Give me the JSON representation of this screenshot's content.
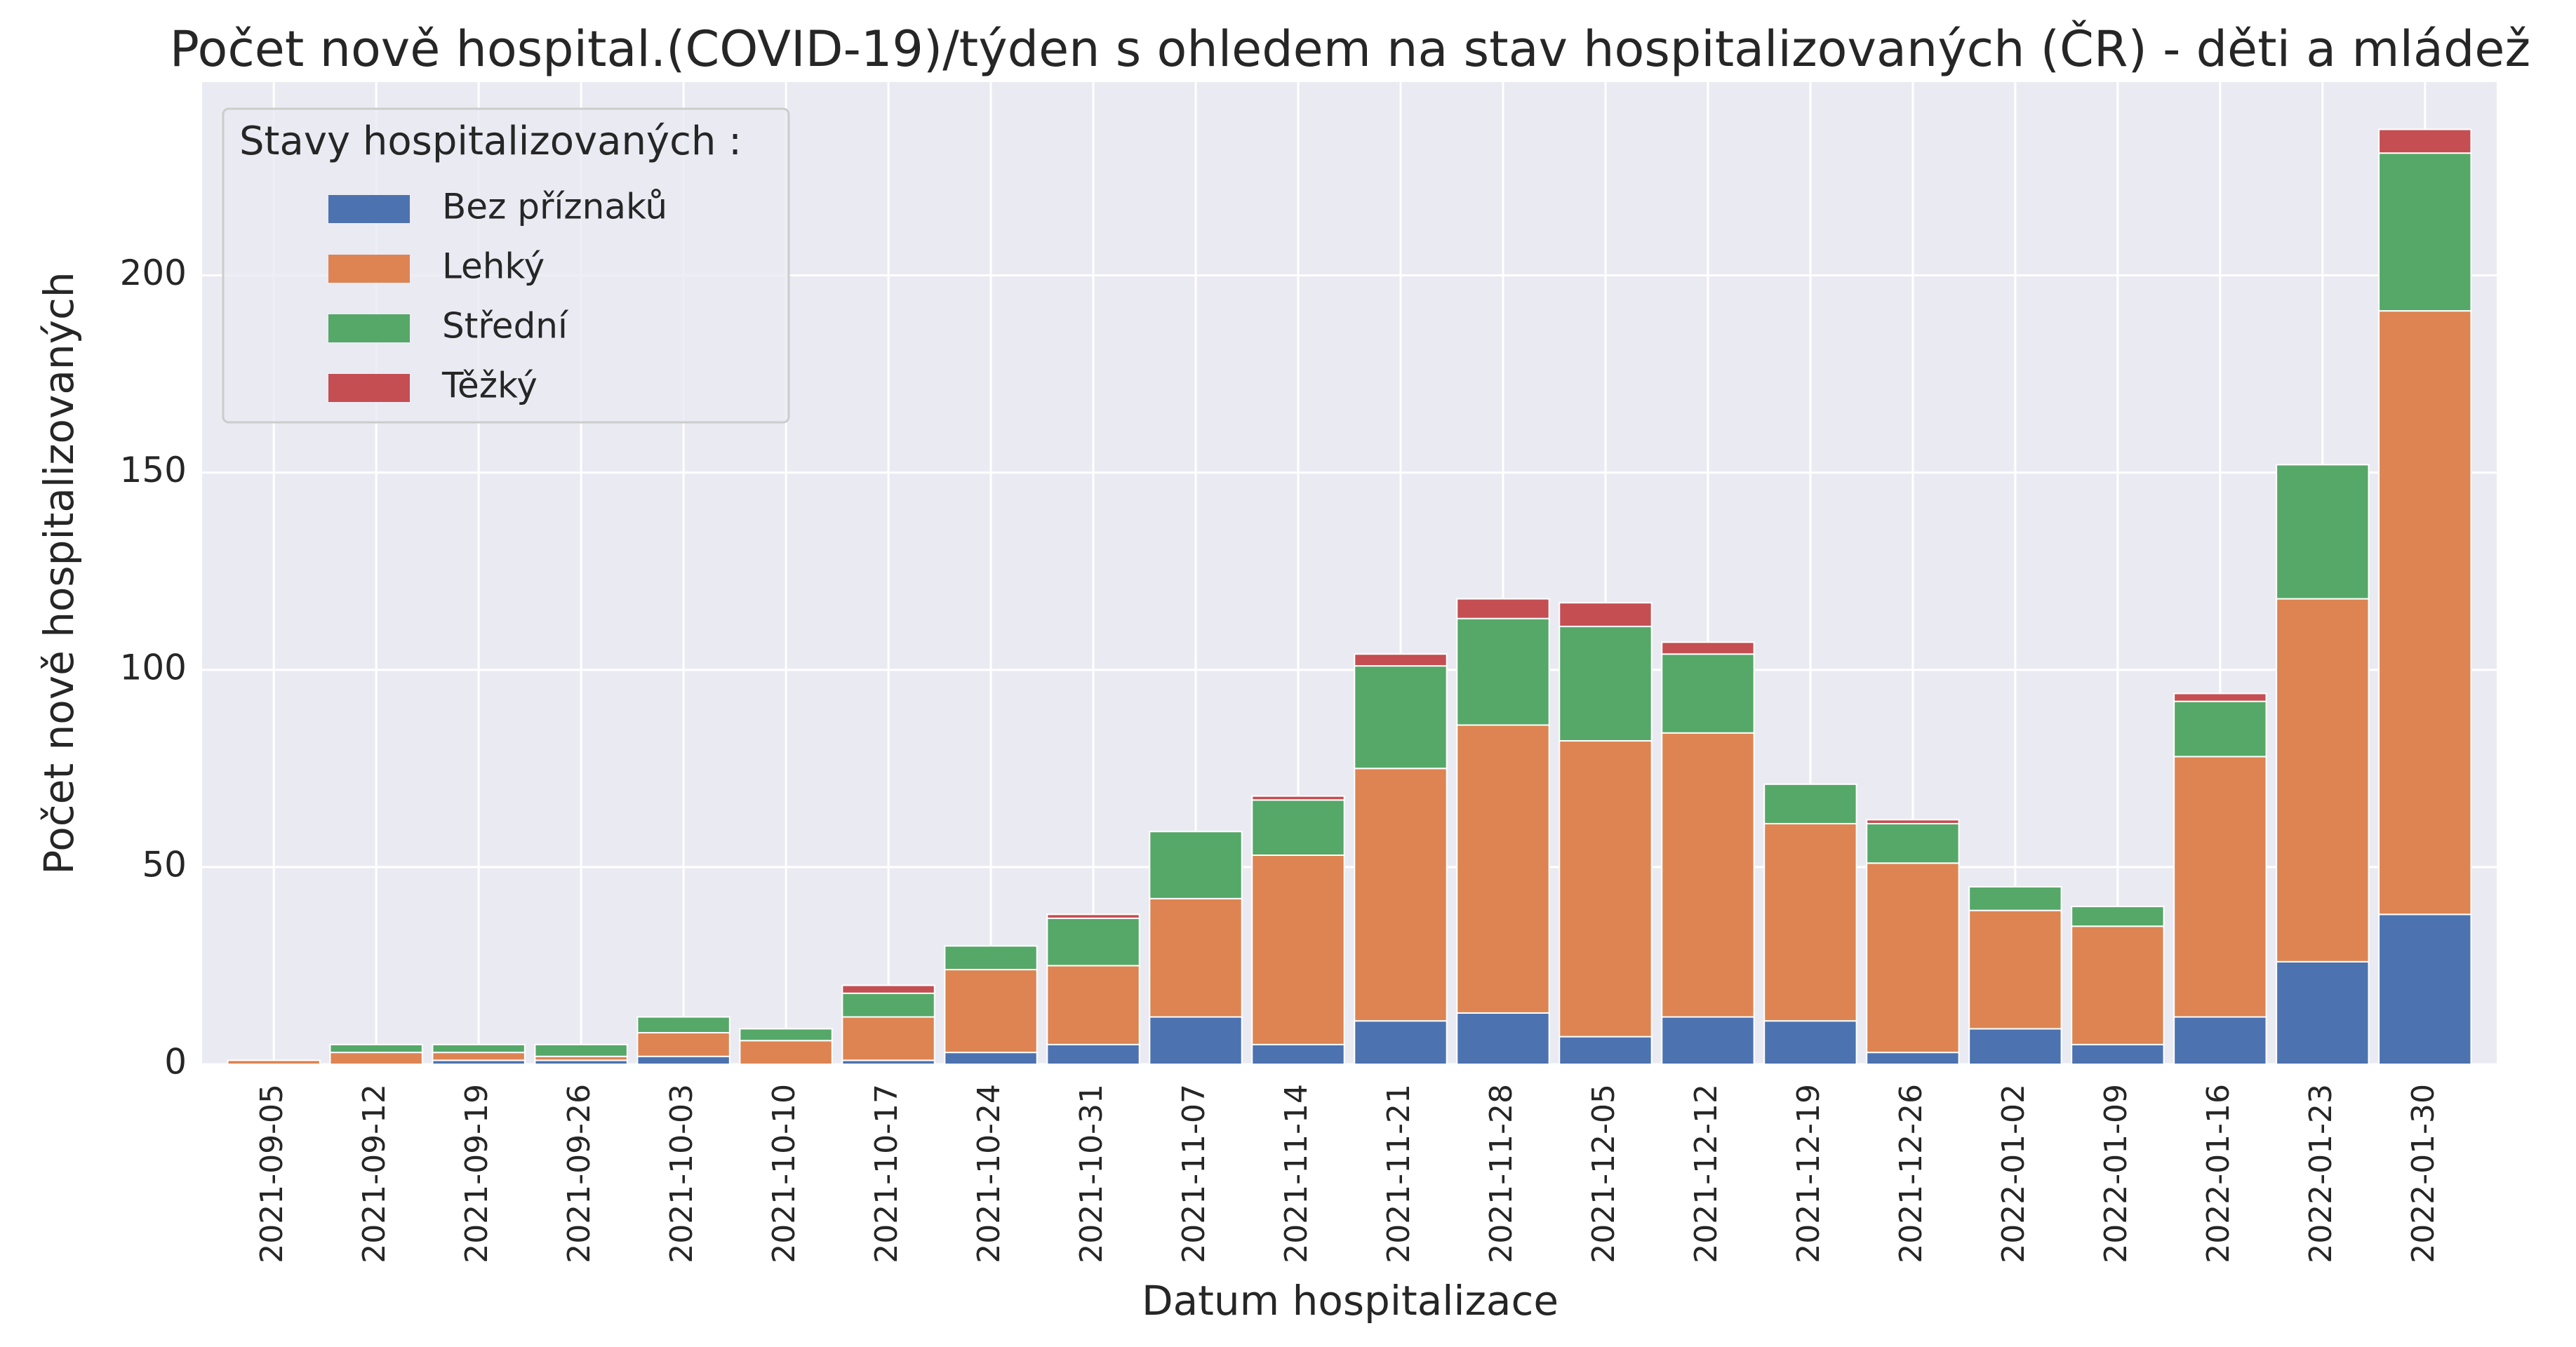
{
  "chart_data": {
    "type": "stacked_bar",
    "title": "Počet nově hospital.(COVID-19)/týden s ohledem na stav hospitalizovaných (ČR) - děti a mládež",
    "xlabel": "Datum hospitalizace",
    "ylabel": "Počet nově hospitalizovaných",
    "legend_title": "Stavy hospitalizovaných :",
    "legend_position": "upper-left",
    "grid": true,
    "categories": [
      "2021-09-05",
      "2021-09-12",
      "2021-09-19",
      "2021-09-26",
      "2021-10-03",
      "2021-10-10",
      "2021-10-17",
      "2021-10-24",
      "2021-10-31",
      "2021-11-07",
      "2021-11-14",
      "2021-11-21",
      "2021-11-28",
      "2021-12-05",
      "2021-12-12",
      "2021-12-19",
      "2021-12-26",
      "2022-01-02",
      "2022-01-09",
      "2022-01-16",
      "2022-01-23",
      "2022-01-30"
    ],
    "series": [
      {
        "name": "Bez příznaků",
        "color": "#4c72b0",
        "values": [
          0,
          0,
          1,
          1,
          2,
          0,
          1,
          3,
          5,
          12,
          5,
          11,
          13,
          7,
          12,
          11,
          3,
          9,
          5,
          12,
          26,
          38
        ]
      },
      {
        "name": "Lehký",
        "color": "#dd8452",
        "values": [
          1,
          3,
          2,
          1,
          6,
          6,
          11,
          21,
          20,
          30,
          48,
          64,
          73,
          75,
          72,
          50,
          48,
          30,
          30,
          66,
          92,
          153
        ]
      },
      {
        "name": "Střední",
        "color": "#55a868",
        "values": [
          0,
          2,
          2,
          3,
          4,
          3,
          6,
          6,
          12,
          17,
          14,
          26,
          27,
          29,
          20,
          10,
          10,
          6,
          5,
          14,
          34,
          40
        ]
      },
      {
        "name": "Těžký",
        "color": "#c44e52",
        "values": [
          0,
          0,
          0,
          0,
          0,
          0,
          2,
          0,
          1,
          0,
          1,
          3,
          5,
          6,
          3,
          0,
          1,
          0,
          0,
          2,
          0,
          6
        ]
      }
    ],
    "ylim": [
      0,
      249
    ],
    "yticks": [
      0,
      50,
      100,
      150,
      200
    ]
  }
}
